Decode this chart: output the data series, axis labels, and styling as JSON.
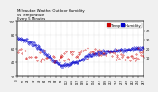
{
  "title": "Milwaukee Weather Outdoor Humidity",
  "subtitle1": "vs Temperature",
  "subtitle2": "Every 5 Minutes",
  "title_fontsize": 2.8,
  "background_color": "#f0f0f0",
  "plot_bg_color": "#ffffff",
  "grid_color": "#bbbbbb",
  "humidity_color": "#0000cc",
  "temp_color": "#cc0000",
  "humidity_ylim": [
    20,
    100
  ],
  "temp_ylim": [
    -10,
    50
  ],
  "legend_humidity": "Humidity",
  "legend_temp": "Temp",
  "legend_fontsize": 2.8,
  "tick_fontsize": 2.4,
  "n_points": 288,
  "humidity_segments": [
    75,
    72,
    65,
    55,
    42,
    35,
    38,
    44,
    50,
    54,
    56,
    57,
    58,
    60,
    62
  ],
  "temp_segments": [
    15,
    14,
    12,
    10,
    10,
    12,
    14,
    16,
    18,
    17,
    15,
    14,
    12,
    13,
    14
  ],
  "yticks_left": [
    20,
    40,
    60,
    80,
    100
  ],
  "yticks_right": [
    10,
    20,
    30,
    40
  ]
}
